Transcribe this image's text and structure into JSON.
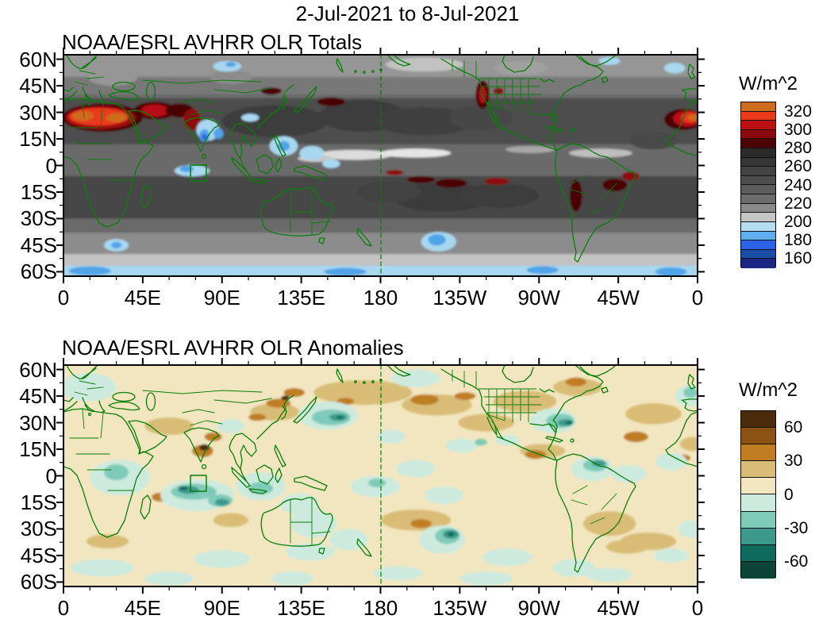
{
  "main_title": "2-Jul-2021 to 8-Jul-2021",
  "map_style": {
    "outline_color": "#087F08",
    "dateline_lon": 180,
    "highlight_box_lonlat": [
      72,
      -9,
      81,
      0
    ]
  },
  "chart_data": [
    {
      "type": "filled_contour_map",
      "title": "NOAA/ESRL AVHRR OLR Totals",
      "lon_range": [
        0,
        360
      ],
      "lat_range": [
        -62.5,
        62.5
      ],
      "x_ticks": {
        "lons": [
          0,
          45,
          90,
          135,
          180,
          225,
          270,
          315,
          360
        ],
        "labels": [
          "0",
          "45E",
          "90E",
          "135E",
          "180",
          "135W",
          "90W",
          "45W",
          "0"
        ],
        "minor_step_deg": 15
      },
      "y_ticks": {
        "lats": [
          60,
          45,
          30,
          15,
          0,
          -15,
          -30,
          -45,
          -60
        ],
        "labels": [
          "60N",
          "45N",
          "30N",
          "15N",
          "0",
          "15S",
          "30S",
          "45S",
          "60S"
        ],
        "minor_step_deg": 7.5
      },
      "colorbar": {
        "unit": "W/m^2",
        "contour_interval": 10,
        "colors_top_to_bottom": [
          "#CE6C1E",
          "#E93B1C",
          "#BC1015",
          "#8C090E",
          "#4C0406",
          "#2B2B2B",
          "#363636",
          "#424242",
          "#4E4E4E",
          "#5C5C5C",
          "#6C6C6C",
          "#8A8A8A",
          "#C4C4C4",
          "#B4DDF2",
          "#5FAEEE",
          "#2B62E8",
          "#1A4DA6",
          "#1C2582"
        ],
        "labels": [
          "320",
          "300",
          "280",
          "260",
          "240",
          "220",
          "200",
          "180",
          "160"
        ],
        "label_every_n_boundaries": 2
      },
      "base_color": "#6A6A6A",
      "bands": [
        [
          62.5,
          50,
          "#969696"
        ],
        [
          50,
          40,
          "#787878"
        ],
        [
          38,
          12,
          "#4E4E4E"
        ],
        [
          -6,
          -30,
          "#464646"
        ],
        [
          -38,
          -50,
          "#8C8C8C"
        ],
        [
          -50,
          -56.5,
          "#C2C2C2"
        ],
        [
          -56.5,
          -62.5,
          "#A8D8F0"
        ]
      ],
      "features": [
        [
          120,
          25,
          30,
          9,
          "#3E3E3E"
        ],
        [
          170,
          28,
          25,
          9,
          "#3E3E3E"
        ],
        [
          205,
          25,
          28,
          8,
          "#414141"
        ],
        [
          237,
          27,
          18,
          7,
          "#464646"
        ],
        [
          215,
          -18,
          28,
          8,
          "#3A3A3A"
        ],
        [
          248,
          -17,
          22,
          7,
          "#3E3E3E"
        ],
        [
          185,
          -15,
          18,
          6,
          "#424242"
        ],
        [
          330,
          -14,
          16,
          7,
          "#464646"
        ],
        [
          335,
          14,
          14,
          5,
          "#4A4A4A"
        ],
        [
          165,
          6,
          22,
          2.8,
          "#DCDCDC"
        ],
        [
          200,
          7,
          20,
          2.5,
          "#E6E6E6"
        ],
        [
          143,
          4,
          10,
          2,
          "#C8C8C8"
        ],
        [
          305,
          7,
          18,
          2.5,
          "#BEBEBE"
        ],
        [
          265,
          9,
          14,
          2,
          "#A8A8A8"
        ],
        [
          205,
          57,
          22,
          4,
          "#C2C2C2"
        ],
        [
          260,
          55,
          15,
          4,
          "#A0A0A0"
        ],
        [
          95,
          50,
          12,
          4,
          "#8C8C8C"
        ],
        [
          28,
          50,
          14,
          5,
          "#969696"
        ],
        [
          22,
          27,
          23,
          8,
          "#4C0406"
        ],
        [
          21,
          27,
          20,
          6.5,
          "#9E0A10"
        ],
        [
          20,
          27.5,
          17,
          5,
          "#E93B1C"
        ],
        [
          11,
          28,
          6,
          2.8,
          "#CE6C1E"
        ],
        [
          30,
          27,
          6,
          2.5,
          "#CE6C1E"
        ],
        [
          52,
          31,
          12,
          5,
          "#4C0406"
        ],
        [
          52,
          31,
          8,
          3.5,
          "#B80F13"
        ],
        [
          66,
          31,
          8,
          4,
          "#4C0406"
        ],
        [
          73,
          26,
          5,
          6,
          "#8C090E"
        ],
        [
          352,
          26,
          11,
          6,
          "#4C0406"
        ],
        [
          354,
          26.5,
          8,
          4.5,
          "#B80F13"
        ],
        [
          356,
          27,
          5.5,
          3,
          "#E93B1C"
        ],
        [
          357.5,
          27,
          3,
          1.7,
          "#CE6C1E"
        ],
        [
          238,
          40,
          4,
          8,
          "#4C0406"
        ],
        [
          238,
          40,
          2.2,
          5,
          "#B80F13"
        ],
        [
          247,
          42,
          3,
          2,
          "#8C090E"
        ],
        [
          291,
          -17,
          3.5,
          9,
          "#4C0406"
        ],
        [
          313,
          -11,
          7,
          3.5,
          "#4C0406"
        ],
        [
          322,
          -6,
          5,
          2.5,
          "#8C090E"
        ],
        [
          203,
          -8,
          8,
          2,
          "#4C0406"
        ],
        [
          220,
          -10,
          9,
          2.5,
          "#4C0406"
        ],
        [
          246,
          -9,
          7,
          2,
          "#8C090E"
        ],
        [
          188,
          -4,
          5,
          1.5,
          "#8C090E"
        ],
        [
          118,
          42,
          6,
          2,
          "#4C0406"
        ],
        [
          152,
          36,
          8,
          2.5,
          "#4C0406"
        ],
        [
          82,
          20,
          6.5,
          6,
          "#A8D8F0"
        ],
        [
          80,
          17,
          3,
          3.5,
          "#4FA3E8"
        ],
        [
          88,
          18,
          2.8,
          3,
          "#4FA3E8"
        ],
        [
          80,
          16,
          1.4,
          1.8,
          "#2B62E8"
        ],
        [
          106,
          27,
          5,
          2.2,
          "#A8D8F0"
        ],
        [
          73,
          -3,
          10,
          3.2,
          "#A8D8F0"
        ],
        [
          70,
          -2,
          4,
          1.8,
          "#4FA3E8"
        ],
        [
          125,
          11,
          8,
          5.5,
          "#A8D8F0"
        ],
        [
          125,
          11,
          3.5,
          2.8,
          "#4FA3E8"
        ],
        [
          141,
          7,
          7,
          4,
          "#A8D8F0"
        ],
        [
          152,
          1,
          5,
          2.5,
          "#A8D8F0"
        ],
        [
          213,
          -43,
          10,
          5.5,
          "#A8D8F0"
        ],
        [
          212,
          -42,
          5,
          3.2,
          "#4FA3E8"
        ],
        [
          30,
          -45,
          7,
          3.5,
          "#A8D8F0"
        ],
        [
          30,
          -45,
          3,
          1.8,
          "#4FA3E8"
        ],
        [
          93,
          56,
          8,
          3,
          "#A8D8F0"
        ],
        [
          95,
          57,
          3,
          1.4,
          "#4FA3E8"
        ],
        [
          347,
          55,
          6,
          3,
          "#A8D8F0"
        ],
        [
          310,
          59,
          6,
          2.2,
          "#A8D8F0"
        ],
        [
          15,
          -59.5,
          12,
          2.5,
          "#4FA3E8"
        ],
        [
          160,
          -60,
          12,
          2.2,
          "#4FA3E8"
        ],
        [
          272,
          -59,
          9,
          2.2,
          "#4FA3E8"
        ],
        [
          345,
          -60,
          9,
          2.5,
          "#4FA3E8"
        ]
      ]
    },
    {
      "type": "filled_contour_map",
      "title": "NOAA/ESRL AVHRR OLR Anomalies",
      "lon_range": [
        0,
        360
      ],
      "lat_range": [
        -62.5,
        62.5
      ],
      "x_ticks": {
        "lons": [
          0,
          45,
          90,
          135,
          180,
          225,
          270,
          315,
          360
        ],
        "labels": [
          "0",
          "45E",
          "90E",
          "135E",
          "180",
          "135W",
          "90W",
          "45W",
          "0"
        ],
        "minor_step_deg": 15
      },
      "y_ticks": {
        "lats": [
          60,
          45,
          30,
          15,
          0,
          -15,
          -30,
          -45,
          -60
        ],
        "labels": [
          "60N",
          "45N",
          "30N",
          "15N",
          "0",
          "15S",
          "30S",
          "45S",
          "60S"
        ],
        "minor_step_deg": 7.5
      },
      "colorbar": {
        "unit": "W/m^2",
        "contour_interval": 15,
        "colors_top_to_bottom": [
          "#4A2C0D",
          "#8B5213",
          "#C07D22",
          "#D9BD77",
          "#F2E6C0",
          "#CDEADE",
          "#7FCBB9",
          "#3D998C",
          "#0E6B5E",
          "#0C4437"
        ],
        "labels": [
          "60",
          "30",
          "0",
          "-30",
          "-60"
        ],
        "label_every_n_boundaries": 2
      },
      "base_color": "#F2E6C0",
      "bands": [],
      "features": [
        [
          170,
          47,
          28,
          7,
          "#D9BD77"
        ],
        [
          120,
          36,
          14,
          5,
          "#D9BD77"
        ],
        [
          60,
          28,
          14,
          5,
          "#D9BD77"
        ],
        [
          212,
          40,
          20,
          6,
          "#D9BD77"
        ],
        [
          240,
          30,
          16,
          5,
          "#D9BD77"
        ],
        [
          262,
          42,
          18,
          6,
          "#D9BD77"
        ],
        [
          292,
          50,
          14,
          5,
          "#D9BD77"
        ],
        [
          272,
          14,
          13,
          4,
          "#D9BD77"
        ],
        [
          200,
          -25,
          20,
          6,
          "#D9BD77"
        ],
        [
          310,
          -27,
          15,
          7,
          "#D9BD77"
        ],
        [
          332,
          -37,
          16,
          5,
          "#D9BD77"
        ],
        [
          25,
          -37,
          12,
          4,
          "#D9BD77"
        ],
        [
          335,
          35,
          16,
          6,
          "#D9BD77"
        ],
        [
          95,
          -25,
          10,
          4,
          "#D9BD77"
        ],
        [
          357,
          18,
          7,
          4,
          "#D9BD77"
        ],
        [
          320,
          -40,
          12,
          4,
          "#D9BD77"
        ],
        [
          79,
          14,
          6,
          3.5,
          "#C07D22"
        ],
        [
          85,
          22,
          5,
          2.5,
          "#C07D22"
        ],
        [
          122,
          41,
          7,
          2.5,
          "#C07D22"
        ],
        [
          131,
          47,
          6,
          2.5,
          "#C07D22"
        ],
        [
          205,
          43,
          8,
          3,
          "#C07D22"
        ],
        [
          228,
          45,
          6,
          2.2,
          "#C07D22"
        ],
        [
          268,
          12,
          6,
          2.5,
          "#C07D22"
        ],
        [
          203,
          -27,
          6,
          2.5,
          "#C07D22"
        ],
        [
          325,
          22,
          7,
          3,
          "#C07D22"
        ],
        [
          291,
          53,
          6,
          2.5,
          "#C07D22"
        ],
        [
          55,
          -12,
          5,
          2.5,
          "#C07D22"
        ],
        [
          352,
          10,
          4,
          2,
          "#C07D22"
        ],
        [
          110,
          33,
          5,
          2,
          "#C07D22"
        ],
        [
          160,
          42,
          5,
          2,
          "#C07D22"
        ],
        [
          80,
          16,
          3,
          1.8,
          "#4A2C0D"
        ],
        [
          126,
          44,
          2.5,
          1.3,
          "#4A2C0D"
        ],
        [
          14,
          50,
          16,
          8,
          "#CDEADE"
        ],
        [
          32,
          -1,
          17,
          10,
          "#CDEADE"
        ],
        [
          76,
          -11,
          21,
          9,
          "#CDEADE"
        ],
        [
          112,
          -6,
          14,
          8,
          "#CDEADE"
        ],
        [
          134,
          -16,
          11,
          6,
          "#CDEADE"
        ],
        [
          150,
          34,
          17,
          8,
          "#CDEADE"
        ],
        [
          177,
          -6,
          14,
          6,
          "#CDEADE"
        ],
        [
          200,
          4,
          11,
          5,
          "#CDEADE"
        ],
        [
          216,
          -11,
          11,
          5,
          "#CDEADE"
        ],
        [
          226,
          17,
          9,
          4,
          "#CDEADE"
        ],
        [
          278,
          31,
          13,
          7,
          "#CDEADE"
        ],
        [
          300,
          4,
          12,
          7,
          "#CDEADE"
        ],
        [
          321,
          1,
          10,
          5,
          "#CDEADE"
        ],
        [
          215,
          -36,
          13,
          8,
          "#CDEADE"
        ],
        [
          252,
          -46,
          14,
          5,
          "#CDEADE"
        ],
        [
          290,
          -52,
          12,
          5,
          "#CDEADE"
        ],
        [
          22,
          -52,
          18,
          5,
          "#CDEADE"
        ],
        [
          90,
          -47,
          16,
          5,
          "#CDEADE"
        ],
        [
          140,
          -43,
          14,
          5,
          "#CDEADE"
        ],
        [
          310,
          -56,
          13,
          4,
          "#CDEADE"
        ],
        [
          356,
          -30,
          7,
          5,
          "#CDEADE"
        ],
        [
          142,
          -27,
          13,
          8,
          "#CDEADE"
        ],
        [
          162,
          -36,
          11,
          6,
          "#CDEADE"
        ],
        [
          345,
          8,
          9,
          5,
          "#CDEADE"
        ],
        [
          355,
          45,
          8,
          6,
          "#CDEADE"
        ],
        [
          252,
          20,
          7,
          3,
          "#CDEADE"
        ],
        [
          186,
          22,
          8,
          4,
          "#CDEADE"
        ],
        [
          240,
          -58,
          15,
          4,
          "#CDEADE"
        ],
        [
          190,
          -55,
          14,
          4,
          "#CDEADE"
        ],
        [
          60,
          -58,
          14,
          4,
          "#CDEADE"
        ],
        [
          130,
          -58,
          12,
          4,
          "#CDEADE"
        ],
        [
          345,
          -45,
          10,
          4,
          "#CDEADE"
        ],
        [
          95,
          28,
          8,
          4,
          "#CDEADE"
        ],
        [
          200,
          55,
          14,
          5,
          "#CDEADE"
        ],
        [
          74,
          -9,
          13,
          4.5,
          "#7FCBB9"
        ],
        [
          89,
          -14,
          7,
          3.5,
          "#7FCBB9"
        ],
        [
          152,
          33,
          11,
          4.5,
          "#7FCBB9"
        ],
        [
          282,
          31,
          8,
          4,
          "#7FCBB9"
        ],
        [
          218,
          -34,
          7,
          4.5,
          "#7FCBB9"
        ],
        [
          302,
          6,
          7,
          3.5,
          "#7FCBB9"
        ],
        [
          30,
          2,
          7,
          4.5,
          "#7FCBB9"
        ],
        [
          112,
          -7,
          7,
          3.5,
          "#7FCBB9"
        ],
        [
          178,
          -4,
          5,
          2.5,
          "#7FCBB9"
        ],
        [
          237,
          19,
          3.5,
          2,
          "#7FCBB9"
        ],
        [
          356,
          47,
          4,
          3,
          "#7FCBB9"
        ],
        [
          71,
          -8,
          6,
          2.2,
          "#3D998C"
        ],
        [
          90,
          -15,
          4,
          2,
          "#3D998C"
        ],
        [
          156,
          33,
          5,
          2,
          "#3D998C"
        ],
        [
          285,
          30,
          4.5,
          2,
          "#3D998C"
        ],
        [
          220,
          -33,
          4.5,
          2.5,
          "#3D998C"
        ],
        [
          304,
          7,
          4,
          1.8,
          "#3D998C"
        ],
        [
          68,
          -7,
          2.6,
          1.1,
          "#0E6B5E"
        ],
        [
          220,
          -33,
          2,
          1.2,
          "#0E6B5E"
        ],
        [
          287,
          30,
          2,
          1,
          "#0E6B5E"
        ],
        [
          157,
          33,
          2,
          0.9,
          "#0E6B5E"
        ]
      ]
    }
  ]
}
